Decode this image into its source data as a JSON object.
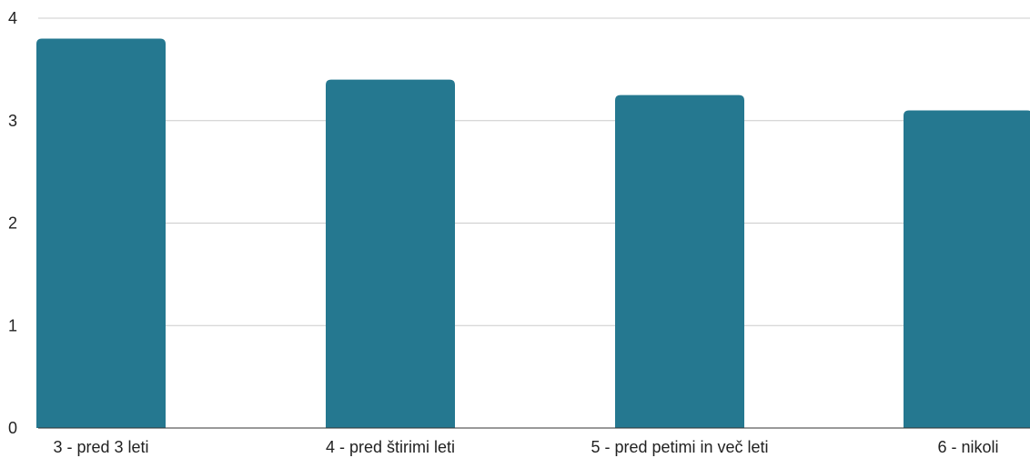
{
  "chart_data": {
    "type": "bar",
    "categories": [
      "3 - pred 3 leti",
      "4 - pred štirimi leti",
      "5 - pred petimi in več leti",
      "6 - nikoli"
    ],
    "values": [
      3.8,
      3.4,
      3.25,
      3.1
    ],
    "title": "",
    "xlabel": "",
    "ylabel": "",
    "ylim": [
      0,
      4
    ],
    "yticks": [
      "0",
      "1",
      "2",
      "3",
      "4"
    ],
    "grid": true,
    "legend": "none",
    "bar_color": "#257890",
    "grid_color": "#cccccc",
    "axis_color": "#333333"
  }
}
